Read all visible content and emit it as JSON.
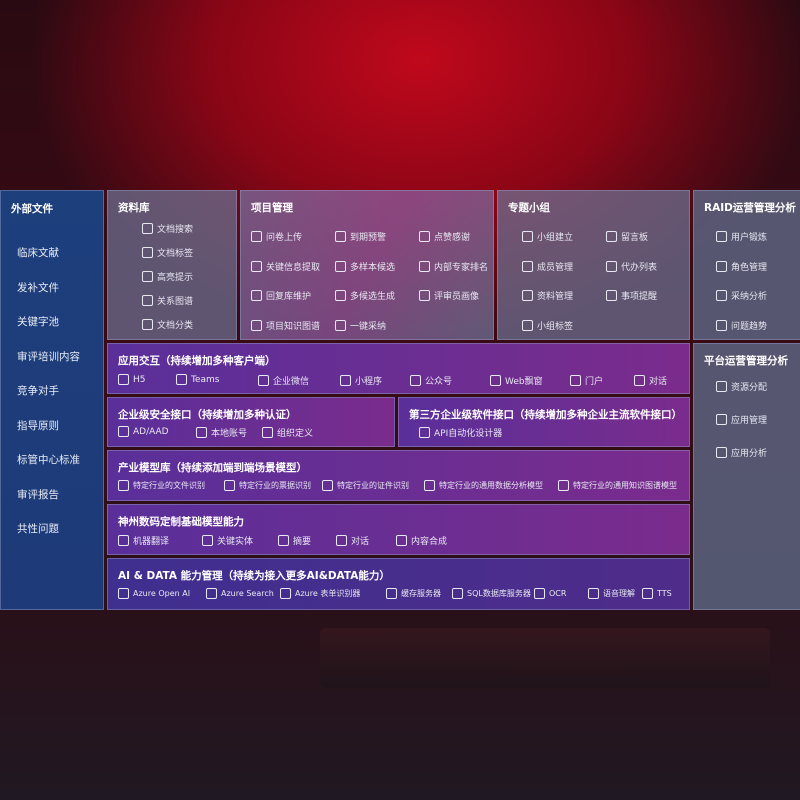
{
  "sidebar": {
    "title": "外部文件",
    "items": [
      "临床文献",
      "发补文件",
      "关键字池",
      "审评培训内容",
      "竞争对手",
      "指导原则",
      "标管中心标准",
      "审评报告",
      "共性问题"
    ]
  },
  "library": {
    "title": "资料库",
    "items": [
      {
        "label": "文档搜索",
        "icon": "doc-search-icon"
      },
      {
        "label": "文档标签",
        "icon": "tag-icon"
      },
      {
        "label": "高亮提示",
        "icon": "pen-icon"
      },
      {
        "label": "关系图谱",
        "icon": "graph-icon"
      },
      {
        "label": "文档分类",
        "icon": "doc-category-icon"
      }
    ]
  },
  "project": {
    "title": "项目管理",
    "items": [
      {
        "label": "问卷上传",
        "icon": "cloud-upload-icon"
      },
      {
        "label": "到期预警",
        "icon": "alarm-icon"
      },
      {
        "label": "点赞感谢",
        "icon": "thumbs-up-icon"
      },
      {
        "label": "关键信息提取",
        "icon": "extract-icon"
      },
      {
        "label": "多样本候选",
        "icon": "reply-icon"
      },
      {
        "label": "内部专家排名",
        "icon": "ranking-icon"
      },
      {
        "label": "回复库维护",
        "icon": "edit-icon"
      },
      {
        "label": "多候选生成",
        "icon": "puzzle-icon"
      },
      {
        "label": "评审员画像",
        "icon": "user-icon"
      },
      {
        "label": "项目知识图谱",
        "icon": "graph-icon"
      },
      {
        "label": "一键采纳",
        "icon": "reply-icon"
      }
    ]
  },
  "group": {
    "title": "专题小组",
    "items": [
      {
        "label": "小组建立",
        "icon": "group-icon"
      },
      {
        "label": "留言板",
        "icon": "bbs-icon"
      },
      {
        "label": "成员管理",
        "icon": "add-user-icon"
      },
      {
        "label": "代办列表",
        "icon": "clipboard-icon"
      },
      {
        "label": "资料管理",
        "icon": "folder-icon"
      },
      {
        "label": "事项提醒",
        "icon": "bell-icon"
      },
      {
        "label": "小组标签",
        "icon": "tag-icon"
      }
    ]
  },
  "raid": {
    "title": "RAID运营管理分析",
    "items": [
      {
        "label": "用户锻炼",
        "icon": "id-card-icon"
      },
      {
        "label": "角色管理",
        "icon": "users-icon"
      },
      {
        "label": "采纳分析",
        "icon": "qa-icon"
      },
      {
        "label": "问题趋势",
        "icon": "trend-icon"
      }
    ]
  },
  "platform": {
    "title": "平台运营管理分析",
    "items": [
      {
        "label": "资源分配",
        "icon": "list-icon"
      },
      {
        "label": "应用管理",
        "icon": "apps-icon"
      },
      {
        "label": "应用分析",
        "icon": "analysis-icon"
      }
    ]
  },
  "interaction": {
    "title": "应用交互（持续增加多种客户端）",
    "items": [
      {
        "label": "H5",
        "icon": "html5-icon"
      },
      {
        "label": "Teams",
        "icon": "teams-icon"
      },
      {
        "label": "企业微信",
        "icon": "wechat-work-icon"
      },
      {
        "label": "小程序",
        "icon": "mini-program-icon"
      },
      {
        "label": "公众号",
        "icon": "official-account-icon"
      },
      {
        "label": "Web飘窗",
        "icon": "window-icon"
      },
      {
        "label": "门户",
        "icon": "portal-icon"
      },
      {
        "label": "对话",
        "icon": "chat-icon"
      }
    ]
  },
  "security": {
    "title": "企业级安全接口（持续增加多种认证）",
    "items": [
      {
        "label": "AD/AAD",
        "icon": "ad-icon"
      },
      {
        "label": "本地账号",
        "icon": "account-icon"
      },
      {
        "label": "组织定义",
        "icon": "org-icon"
      }
    ]
  },
  "thirdparty": {
    "title": "第三方企业级软件接口（持续增加多种企业主流软件接口）",
    "items": [
      {
        "label": "API自动化设计器",
        "icon": "gear-icon"
      }
    ]
  },
  "industry": {
    "title": "产业模型库（持续添加端到端场景模型）",
    "items": [
      {
        "label": "特定行业的文件识别",
        "icon": "file-icon"
      },
      {
        "label": "特定行业的票据识别",
        "icon": "receipt-icon"
      },
      {
        "label": "特定行业的证件识别",
        "icon": "id-card-icon"
      },
      {
        "label": "特定行业的通用数据分析模型",
        "icon": "chart-icon"
      },
      {
        "label": "特定行业的通用知识图谱模型",
        "icon": "graph-icon"
      }
    ]
  },
  "base": {
    "title": "神州数码定制基础模型能力",
    "items": [
      {
        "label": "机器翻译",
        "icon": "translate-icon"
      },
      {
        "label": "关键实体",
        "icon": "entity-icon"
      },
      {
        "label": "摘要",
        "icon": "summary-icon"
      },
      {
        "label": "对话",
        "icon": "chat-icon"
      },
      {
        "label": "内容合成",
        "icon": "compose-icon"
      }
    ]
  },
  "ai": {
    "title": "AI & DATA 能力管理（持续为接入更多AI&DATA能力）",
    "items": [
      {
        "label": "Azure Open AI",
        "icon": "openai-icon"
      },
      {
        "label": "Azure Search",
        "icon": "search-icon"
      },
      {
        "label": "Azure 表单识别器",
        "icon": "form-icon"
      },
      {
        "label": "缓存服务器",
        "icon": "cache-icon"
      },
      {
        "label": "SQL数据库服务器",
        "icon": "database-icon"
      },
      {
        "label": "OCR",
        "icon": "ocr-icon"
      },
      {
        "label": "语音理解",
        "icon": "speech-icon"
      },
      {
        "label": "TTS",
        "icon": "tts-icon"
      }
    ]
  }
}
